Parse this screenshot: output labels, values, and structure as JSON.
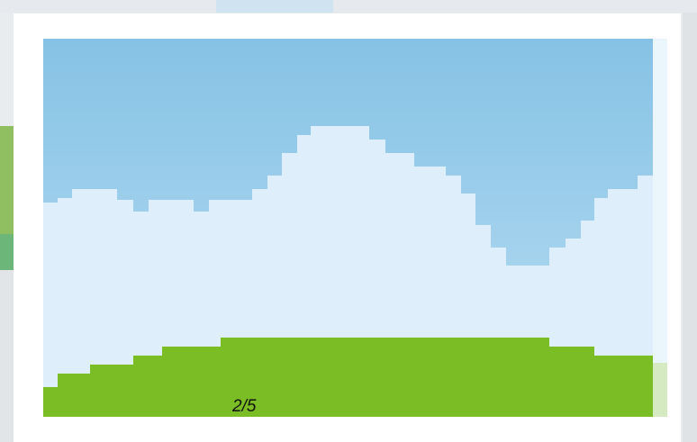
{
  "lightbox": {
    "counter": "2/5"
  }
}
